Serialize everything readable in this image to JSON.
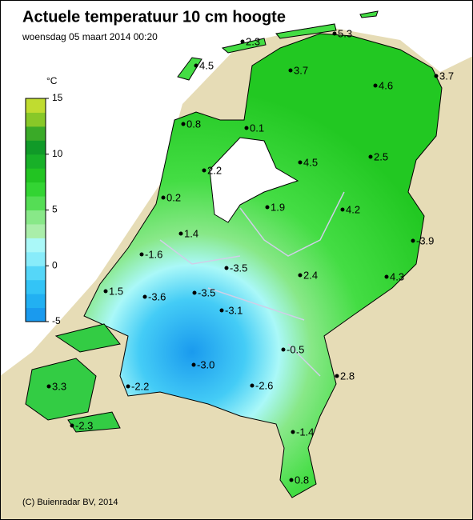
{
  "header": {
    "title": "Actuele temperatuur 10 cm hoogte",
    "subtitle": "woensdag 05 maart 2014 00:20"
  },
  "legend": {
    "unit": "°C",
    "range": [
      -5,
      15
    ],
    "ticks": [
      15,
      10,
      5,
      0,
      -5
    ],
    "colors": [
      "#1a9aee",
      "#22b0f2",
      "#33c4f6",
      "#55d6f8",
      "#88ecfa",
      "#aaf8f8",
      "#aaeeaa",
      "#88e888",
      "#55dd55",
      "#33d433",
      "#22c422",
      "#18b028",
      "#109a28",
      "#3aaa28",
      "#88c828",
      "#c0dc30"
    ]
  },
  "stations": [
    "5.3",
    "2.3",
    "4.5",
    "3.7",
    "3.7",
    "4.6",
    "0.8",
    "0.1",
    "2.5",
    "4.5",
    "2.2",
    "0.2",
    "1.9",
    "4.2",
    "1.4",
    "-3.9",
    "-1.6",
    "-3.5",
    "2.4",
    "4.3",
    "1.5",
    "-3.6",
    "-3.5",
    "-3.1",
    "-0.5",
    "-3.0",
    "2.8",
    "-2.6",
    "3.3",
    "-2.2",
    "-2.3",
    "-1.4",
    "0.8"
  ],
  "footer": {
    "credit": "(C) Buienradar BV, 2014"
  }
}
